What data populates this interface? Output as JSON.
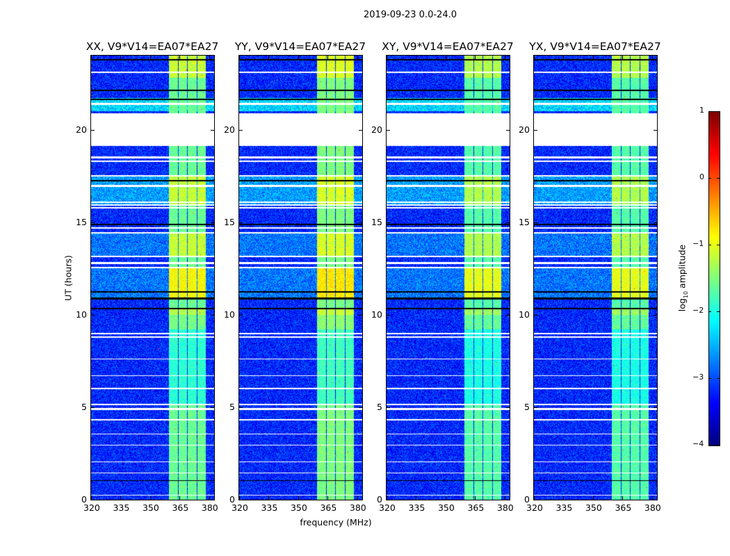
{
  "chart_data": {
    "type": "heatmap",
    "title": "2019-09-23 0.0-24.0",
    "xlabel": "frequency (MHz)",
    "ylabel": "UT (hours)",
    "xlim": [
      320,
      382.5
    ],
    "ylim": [
      0,
      24
    ],
    "xticks": [
      320,
      335,
      350,
      365,
      380
    ],
    "yticks": [
      0,
      5,
      10,
      15,
      20
    ],
    "panels": [
      {
        "title": "XX, V9*V14=EA07*EA27",
        "band_level": -1.6
      },
      {
        "title": "YY, V9*V14=EA07*EA27",
        "band_level": -1.5
      },
      {
        "title": "XY, V9*V14=EA07*EA27",
        "band_level": -1.7
      },
      {
        "title": "YX, V9*V14=EA07*EA27",
        "band_level": -1.7
      }
    ],
    "background_level": -3.2,
    "bright_bands_mhz": [
      [
        359.6,
        364.2
      ],
      [
        364.5,
        368.8
      ],
      [
        369.2,
        373.8
      ],
      [
        374.2,
        378.4
      ]
    ],
    "flagged_ut_ranges": [
      [
        19.1,
        20.9
      ],
      [
        23.05,
        23.15
      ],
      [
        21.35,
        21.45
      ],
      [
        18.45,
        18.55
      ],
      [
        18.25,
        18.32
      ],
      [
        17.45,
        17.55
      ],
      [
        16.9,
        17.0
      ],
      [
        16.05,
        16.12
      ],
      [
        15.9,
        15.96
      ],
      [
        15.75,
        15.82
      ],
      [
        14.65,
        14.72
      ],
      [
        14.4,
        14.47
      ],
      [
        13.1,
        13.17
      ],
      [
        12.75,
        12.85
      ],
      [
        12.5,
        12.58
      ],
      [
        8.95,
        9.02
      ],
      [
        8.75,
        8.82
      ],
      [
        7.58,
        7.64
      ],
      [
        6.68,
        6.74
      ],
      [
        5.98,
        6.04
      ],
      [
        5.1,
        5.2
      ],
      [
        4.85,
        4.95
      ],
      [
        4.28,
        4.34
      ],
      [
        3.52,
        3.58
      ],
      [
        2.92,
        2.98
      ],
      [
        2.02,
        2.08
      ],
      [
        1.42,
        1.48
      ],
      [
        0.22,
        0.28
      ]
    ],
    "dark_ut_lines": [
      [
        23.75,
        23.8
      ],
      [
        22.1,
        22.16
      ],
      [
        21.6,
        21.66
      ],
      [
        17.2,
        17.26
      ],
      [
        14.85,
        14.9
      ],
      [
        11.2,
        11.27
      ],
      [
        10.8,
        10.92
      ],
      [
        10.28,
        10.35
      ],
      [
        1.0,
        1.06
      ]
    ],
    "enhanced_ut_ranges": [
      {
        "range": [
          10.9,
          12.5
        ],
        "band_boost": 0.8,
        "bg_boost": 0.4
      },
      {
        "range": [
          15.9,
          17.5
        ],
        "band_boost": 0.5,
        "bg_boost": 0.6
      },
      {
        "range": [
          13.2,
          14.4
        ],
        "band_boost": 0.5,
        "bg_boost": 0.4
      },
      {
        "range": [
          21.0,
          21.7
        ],
        "band_boost": 0.0,
        "bg_boost": 0.9
      },
      {
        "range": [
          22.8,
          24.0
        ],
        "band_boost": 0.5,
        "bg_boost": 0.0
      },
      {
        "range": [
          9.2,
          10.3
        ],
        "band_boost": 0.4,
        "bg_boost": 0.0
      }
    ],
    "colorbar": {
      "label": "log10 amplitude",
      "label_main": "log",
      "label_sub": "10",
      "label_rest": " amplitude",
      "range": [
        -4,
        1
      ],
      "ticks": [
        "1",
        "0",
        "−1",
        "−2",
        "−3",
        "−4"
      ],
      "tick_values": [
        1,
        0,
        -1,
        -2,
        -3,
        -4
      ],
      "colormap": "jet"
    }
  }
}
